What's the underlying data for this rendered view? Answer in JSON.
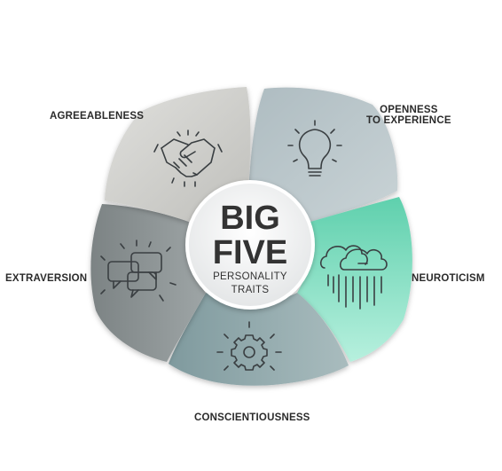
{
  "diagram": {
    "center": {
      "line1": "BIG",
      "line2": "FIVE",
      "line3": "PERSONALITY",
      "line4": "TRAITS"
    },
    "traits": [
      {
        "id": "openness",
        "label_line1": "OPENNESS",
        "label_line2": "TO EXPERIENCE",
        "icon": "lightbulb-icon",
        "color": "#b9c5c9"
      },
      {
        "id": "neuroticism",
        "label_line1": "NEUROTICISM",
        "icon": "rain-cloud-icon",
        "color": "#8de3c8"
      },
      {
        "id": "conscientiousness",
        "label_line1": "CONSCIENTIOUSNESS",
        "icon": "gear-icon",
        "color": "#8aa3a6"
      },
      {
        "id": "extraversion",
        "label_line1": "EXTRAVERSION",
        "icon": "speech-bubbles-icon",
        "color": "#8a9192"
      },
      {
        "id": "agreeableness",
        "label_line1": "AGREEABLENESS",
        "icon": "handshake-icon",
        "color": "#cfcfcc"
      }
    ]
  }
}
